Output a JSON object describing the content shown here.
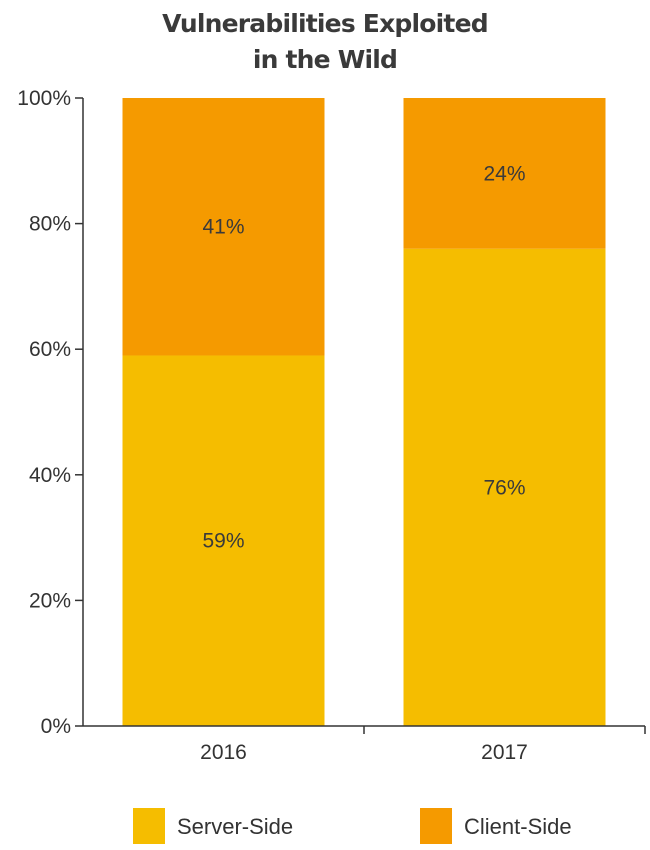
{
  "chart_data": {
    "type": "bar",
    "stacked": true,
    "title": [
      "Vulnerabilities Exploited",
      "in the Wild"
    ],
    "categories": [
      "2016",
      "2017"
    ],
    "series": [
      {
        "name": "Server-Side",
        "values": [
          59,
          76
        ],
        "labels": [
          "59%",
          "76%"
        ],
        "color": "#f5bd00"
      },
      {
        "name": "Client-Side",
        "values": [
          41,
          24
        ],
        "labels": [
          "41%",
          "24%"
        ],
        "color": "#f59a00"
      }
    ],
    "ylim": [
      0,
      100
    ],
    "yticks": [
      0,
      20,
      40,
      60,
      80,
      100
    ],
    "ytick_labels": [
      "0%",
      "20%",
      "40%",
      "60%",
      "80%",
      "100%"
    ],
    "grid": false,
    "legend_position": "bottom"
  }
}
